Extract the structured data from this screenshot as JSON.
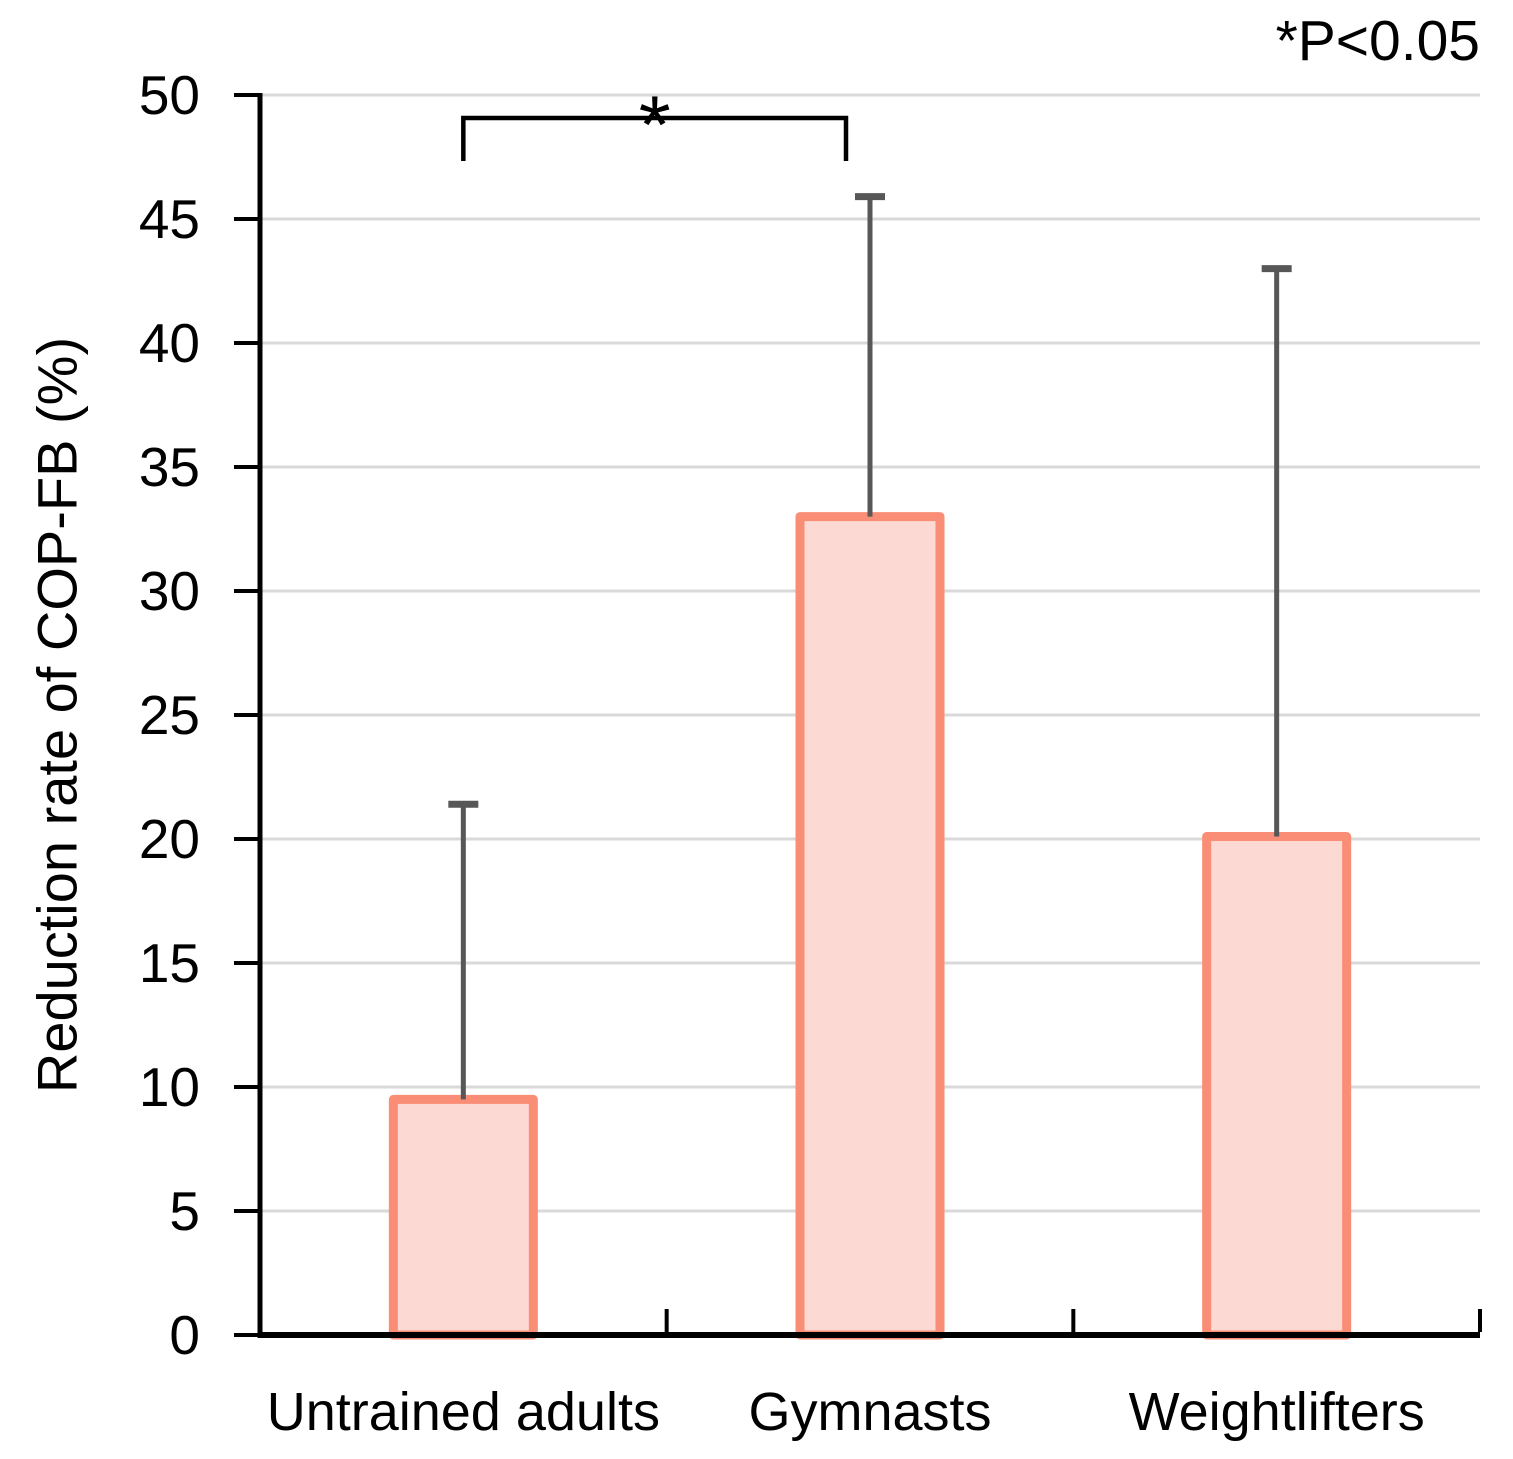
{
  "chart_data": {
    "type": "bar",
    "title": "",
    "xlabel": "",
    "ylabel": "Reduction rate of COP-FB (%)",
    "categories": [
      "Untrained adults",
      "Gymnasts",
      "Weightlifters"
    ],
    "values": [
      9.5,
      33,
      20.1
    ],
    "error_bars": {
      "direction": "upper",
      "tops": [
        21.4,
        45.9,
        43
      ]
    },
    "ylim": [
      0,
      50
    ],
    "ytick_step": 5,
    "grid": true,
    "legend": false,
    "significance": {
      "pair_indices": [
        0,
        1
      ],
      "marker": "*",
      "note": "*P<0.05"
    },
    "colors": {
      "bar_fill": "#FCDAD3",
      "bar_border": "#FA8D75",
      "error_bar": "#575757",
      "gridline": "#D9D9D9",
      "axis": "#000000"
    }
  }
}
